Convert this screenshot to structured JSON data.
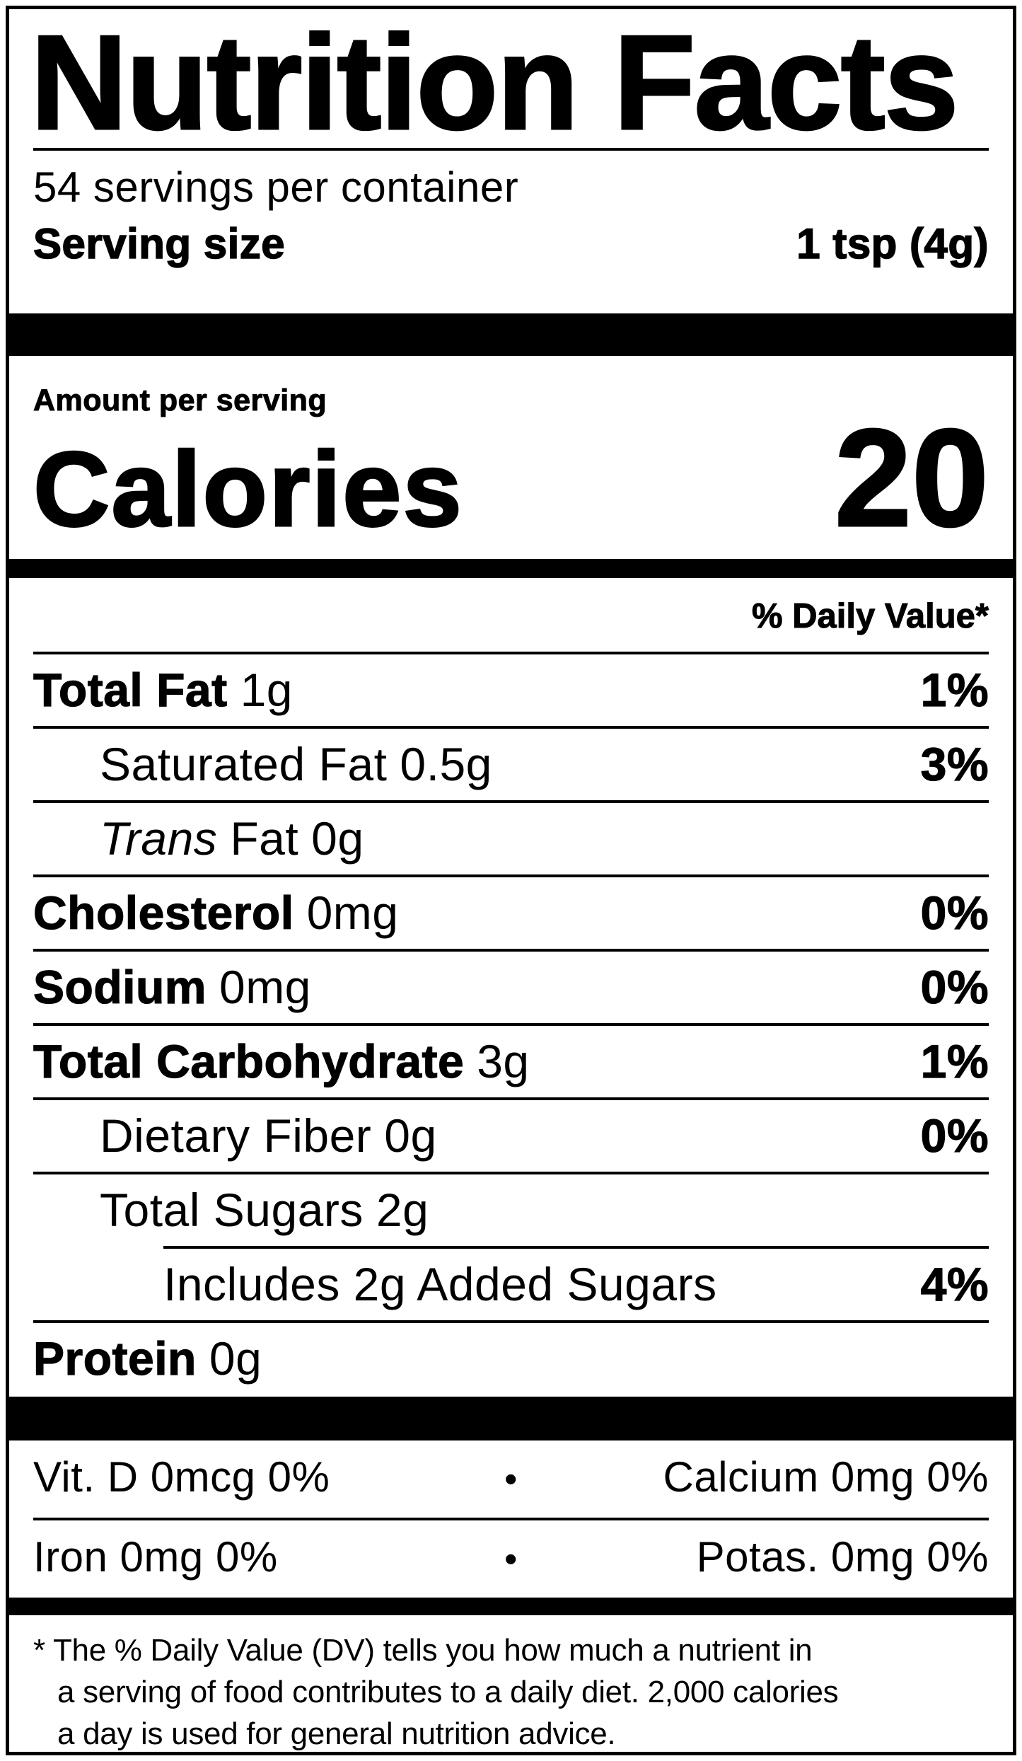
{
  "label": {
    "title": "Nutrition Facts",
    "servings_per_container": "54 servings per container",
    "serving_size": {
      "label": "Serving size",
      "value": "1 tsp (4g)"
    },
    "calories": {
      "context": "Amount per serving",
      "label": "Calories",
      "value": "20"
    },
    "daily_value_header": "% Daily Value*",
    "nutrients": [
      {
        "name": "Total Fat",
        "amount": "1g",
        "daily_value": "1%"
      },
      {
        "name": "Saturated Fat",
        "amount": "0.5g",
        "daily_value": "3%"
      },
      {
        "name_italic": "Trans",
        "name_rest": "Fat",
        "amount": "0g",
        "daily_value": ""
      },
      {
        "name": "Cholesterol",
        "amount": "0mg",
        "daily_value": "0%"
      },
      {
        "name": "Sodium",
        "amount": "0mg",
        "daily_value": "0%"
      },
      {
        "name": "Total Carbohydrate",
        "amount": "3g",
        "daily_value": "1%"
      },
      {
        "name": "Dietary Fiber",
        "amount": "0g",
        "daily_value": "0%"
      },
      {
        "name": "Total Sugars",
        "amount": "2g",
        "daily_value": ""
      },
      {
        "name": "Includes 2g Added Sugars",
        "amount": "",
        "daily_value": "4%"
      },
      {
        "name": "Protein",
        "amount": "0g",
        "daily_value": ""
      }
    ],
    "micronutrients": {
      "separator": "•",
      "rows": [
        {
          "left": "Vit. D 0mcg 0%",
          "right": "Calcium 0mg 0%"
        },
        {
          "left": "Iron 0mg 0%",
          "right": "Potas. 0mg 0%"
        }
      ]
    },
    "footnote_lines": [
      "* The % Daily Value (DV) tells you how much a nutrient in",
      "a serving of food contributes to a daily diet. 2,000 calories",
      "a day is used for general nutrition advice."
    ],
    "colors": {
      "ink": "#000000",
      "paper": "#ffffff"
    }
  }
}
